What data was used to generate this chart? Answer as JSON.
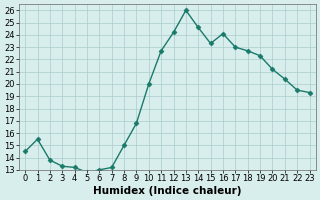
{
  "x": [
    0,
    1,
    2,
    3,
    4,
    5,
    6,
    7,
    8,
    9,
    10,
    11,
    12,
    13,
    14,
    15,
    16,
    17,
    18,
    19,
    20,
    21,
    22,
    23
  ],
  "y": [
    14.5,
    15.5,
    13.8,
    13.3,
    13.2,
    12.8,
    13.0,
    13.2,
    15.0,
    16.8,
    20.0,
    22.7,
    24.2,
    26.0,
    24.6,
    23.3,
    24.1,
    23.0,
    22.7,
    22.3,
    21.2,
    20.4,
    19.5,
    19.3
  ],
  "xlabel": "Humidex (Indice chaleur)",
  "ylim": [
    13,
    26.5
  ],
  "xlim": [
    -0.5,
    23.5
  ],
  "yticks": [
    13,
    14,
    15,
    16,
    17,
    18,
    19,
    20,
    21,
    22,
    23,
    24,
    25,
    26
  ],
  "xticks": [
    0,
    1,
    2,
    3,
    4,
    5,
    6,
    7,
    8,
    9,
    10,
    11,
    12,
    13,
    14,
    15,
    16,
    17,
    18,
    19,
    20,
    21,
    22,
    23
  ],
  "line_color": "#1a7a6a",
  "marker_color": "#1a7a6a",
  "bg_color": "#d8eeec",
  "grid_color": "#aacccc",
  "tick_fontsize": 6,
  "xlabel_fontsize": 7.5
}
